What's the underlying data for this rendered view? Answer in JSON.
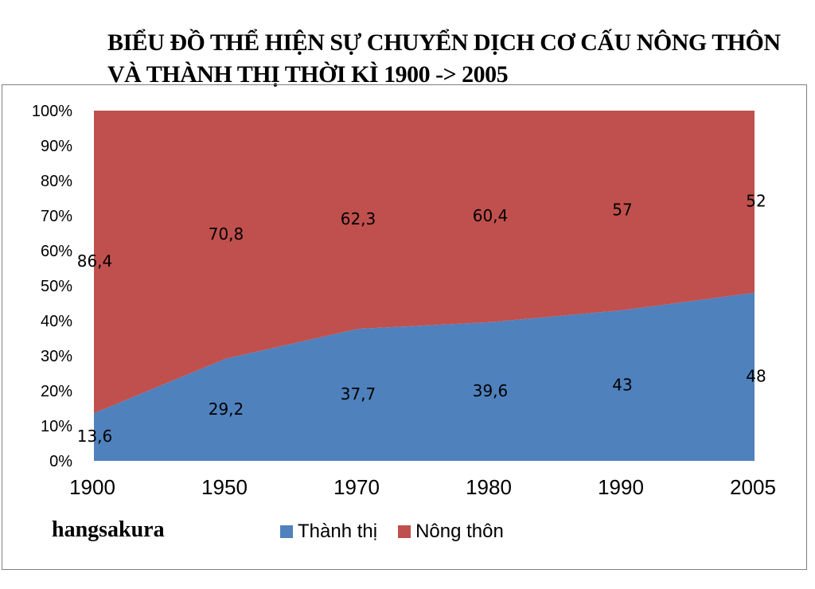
{
  "chart_data": {
    "type": "area",
    "stacked": "percent",
    "title": "BIỂU ĐỒ THỂ HIỆN SỰ CHUYỂN DỊCH CƠ CẤU NÔNG THÔN VÀ THÀNH THỊ THỜI KÌ 1900 -> 2005",
    "categories": [
      "1900",
      "1950",
      "1970",
      "1980",
      "1990",
      "2005"
    ],
    "series": [
      {
        "name": "Thành  thị",
        "color": "#4f81bd",
        "values": [
          13.6,
          29.2,
          37.7,
          39.6,
          43,
          48
        ],
        "labels": [
          "13,6",
          "29,2",
          "37,7",
          "39,6",
          "43",
          "48"
        ]
      },
      {
        "name": "Nông thôn",
        "color": "#c0504d",
        "values": [
          86.4,
          70.8,
          62.3,
          60.4,
          57,
          52
        ],
        "labels": [
          "86,4",
          "70,8",
          "62,3",
          "60,4",
          "57",
          "52"
        ]
      }
    ],
    "y_ticks": [
      "0%",
      "10%",
      "20%",
      "30%",
      "40%",
      "50%",
      "60%",
      "70%",
      "80%",
      "90%",
      "100%"
    ],
    "ylim": [
      0,
      100
    ],
    "xlabel": "",
    "ylabel": "",
    "legend_position": "bottom"
  },
  "author": "hangsakura"
}
